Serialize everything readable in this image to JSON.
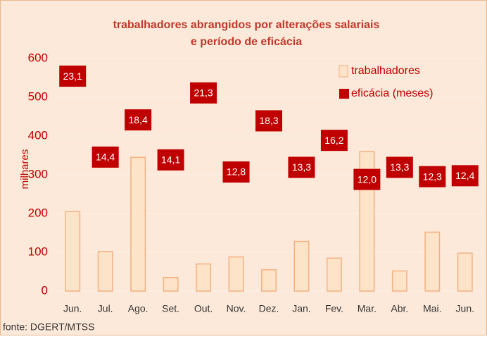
{
  "chart_data": {
    "type": "bar",
    "title": "trabalhadores abrangidos por alterações salariais",
    "subtitle": "e período de eficácia",
    "y_label": "milhares",
    "source": "fonte: DGERT/MTSS",
    "categories": [
      "Jun.",
      "Jul.",
      "Ago.",
      "Set.",
      "Out.",
      "Nov.",
      "Dez.",
      "Jan.",
      "Fev.",
      "Mar.",
      "Abr.",
      "Mai.",
      "Jun."
    ],
    "series": [
      {
        "name": "trabalhadores",
        "color": "#fde3c8",
        "values": [
          205,
          102,
          345,
          35,
          70,
          88,
          55,
          128,
          85,
          360,
          52,
          152,
          98
        ]
      },
      {
        "name": "eficácia (meses)",
        "color": "#c00000",
        "axis": "y2",
        "values": [
          23.1,
          14.4,
          18.4,
          14.1,
          21.3,
          12.8,
          18.3,
          13.3,
          16.2,
          12.0,
          13.3,
          12.3,
          12.4
        ],
        "value_labels": [
          "23,1",
          "14,4",
          "18,4",
          "14,1",
          "21,3",
          "12,8",
          "18,3",
          "13,3",
          "16,2",
          "12,0",
          "13,3",
          "12,3",
          "12,4"
        ]
      }
    ],
    "ylim": [
      0,
      600
    ],
    "yticks": [
      0,
      100,
      200,
      300,
      400,
      500,
      600
    ],
    "y2lim": [
      0,
      25
    ],
    "grid": true,
    "legend": "top-right"
  }
}
